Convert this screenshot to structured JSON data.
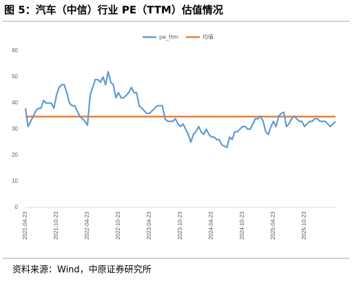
{
  "chart_data": {
    "type": "line",
    "title": "图 5：汽车（中信）行业 PE（TTM）估值情况",
    "source": "资料来源：Wind，中原证券研究所",
    "categories": [
      "2021-04-23",
      null,
      null,
      null,
      null,
      null,
      null,
      null,
      null,
      null,
      null,
      null,
      "2021-10-23",
      null,
      null,
      null,
      null,
      null,
      null,
      null,
      null,
      null,
      null,
      null,
      "2022-04-23",
      null,
      null,
      null,
      null,
      null,
      null,
      null,
      null,
      null,
      null,
      null,
      "2022-10-23",
      null,
      null,
      null,
      null,
      null,
      null,
      null,
      null,
      null,
      null,
      null,
      "2023-04-23",
      null,
      null,
      null,
      null,
      null,
      null,
      null,
      null,
      null,
      null,
      null,
      "2023-10-23",
      null,
      null,
      null,
      null,
      null,
      null,
      null,
      null,
      null,
      null,
      null,
      "2024-04-23",
      null,
      null,
      null,
      null,
      null,
      null,
      null,
      null,
      null,
      null,
      null,
      "2024-10-23",
      null,
      null,
      null,
      null,
      null,
      null,
      null,
      null,
      null,
      null,
      null,
      "2025-04-23",
      null,
      null,
      null,
      null,
      null,
      null,
      null,
      null,
      null,
      null,
      null,
      "2025-10-23",
      null,
      null,
      null,
      null,
      null,
      null,
      null,
      null,
      null,
      null,
      null,
      null
    ],
    "series": [
      {
        "name": "pe_ttm",
        "color": "#5b9bd5",
        "values": [
          38,
          31,
          33,
          35,
          37,
          38,
          38,
          41,
          40,
          40,
          40,
          38,
          43,
          46,
          47,
          47,
          44,
          40,
          39,
          39,
          37,
          35,
          34,
          33,
          31.5,
          43,
          46,
          49,
          49,
          48,
          50,
          47,
          52,
          48,
          47,
          42,
          44,
          42,
          42,
          43,
          44,
          46,
          44,
          44,
          39,
          38,
          37,
          36,
          36,
          37,
          38,
          39,
          39,
          39,
          34,
          33,
          33,
          33,
          34,
          32,
          31,
          32,
          30,
          28,
          25,
          28,
          29,
          31,
          29,
          28,
          30,
          28,
          27,
          27,
          26,
          26,
          24,
          23.5,
          23,
          27,
          26,
          29,
          29,
          30,
          31,
          31,
          30,
          30,
          32,
          34,
          34,
          35,
          33,
          29,
          28,
          31,
          33,
          31,
          35,
          36,
          36.5,
          31,
          32,
          34,
          35,
          34,
          33,
          33,
          31,
          32,
          33,
          33,
          34,
          34,
          33,
          33,
          33,
          32,
          31,
          32,
          33
        ]
      }
    ],
    "mean": {
      "name": "均值",
      "color": "#ed7d31",
      "value": 34.8
    },
    "ylim": [
      0,
      60
    ],
    "yticks": [
      0,
      10,
      20,
      30,
      40,
      50,
      60
    ],
    "legend": "top"
  }
}
